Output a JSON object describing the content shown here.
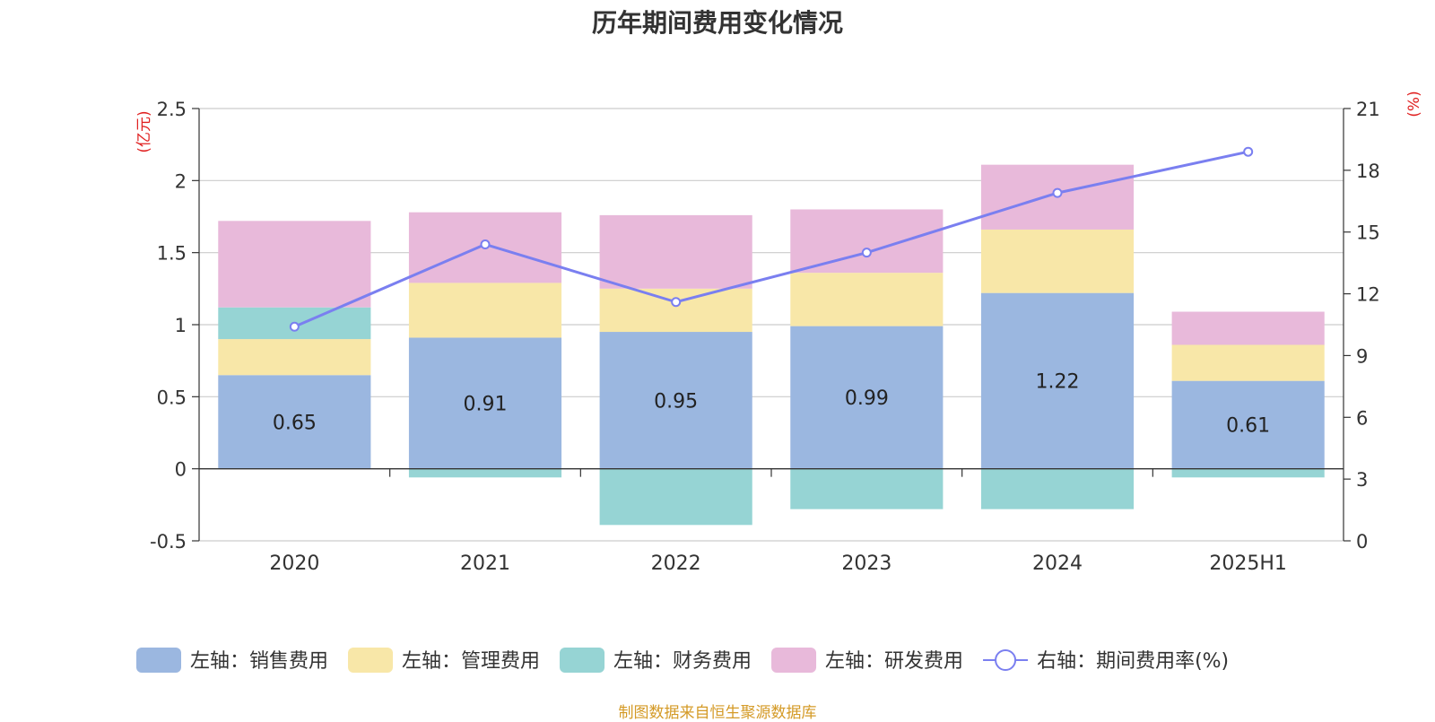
{
  "title": "历年期间费用变化情况",
  "footer": "制图数据来自恒生聚源数据库",
  "chart_data": {
    "type": "bar",
    "stacked": true,
    "title": "历年期间费用变化情况",
    "categories": [
      "2020",
      "2021",
      "2022",
      "2023",
      "2024",
      "2025H1"
    ],
    "left_axis": {
      "unit": "(亿元)",
      "ylim": [
        -0.5,
        2.5
      ],
      "ticks": [
        "2.5",
        "2",
        "1.5",
        "1",
        "0.5",
        "0",
        "-0.5"
      ]
    },
    "right_axis": {
      "unit": "(%)",
      "ylim": [
        0,
        21
      ],
      "ticks": [
        "21",
        "18",
        "15",
        "12",
        "9",
        "6",
        "3",
        "0"
      ]
    },
    "series": [
      {
        "name": "左轴：销售费用",
        "axis": "left",
        "kind": "bar",
        "color": "#9bb7e0",
        "values": [
          0.65,
          0.91,
          0.95,
          0.99,
          1.22,
          0.61
        ],
        "labels": [
          "0.65",
          "0.91",
          "0.95",
          "0.99",
          "1.22",
          "0.61"
        ]
      },
      {
        "name": "左轴：管理费用",
        "axis": "left",
        "kind": "bar",
        "color": "#f8e7a8",
        "values": [
          0.25,
          0.38,
          0.3,
          0.37,
          0.44,
          0.25
        ]
      },
      {
        "name": "左轴：财务费用",
        "axis": "left",
        "kind": "bar",
        "color": "#96d4d4",
        "values": [
          0.22,
          -0.06,
          -0.39,
          -0.28,
          -0.28,
          -0.06
        ]
      },
      {
        "name": "左轴：研发费用",
        "axis": "left",
        "kind": "bar",
        "color": "#e8b9da",
        "values": [
          0.6,
          0.49,
          0.51,
          0.44,
          0.45,
          0.23
        ]
      },
      {
        "name": "右轴：期间费用率(%)",
        "axis": "right",
        "kind": "line",
        "color": "#7a7ff0",
        "values": [
          10.4,
          14.4,
          11.6,
          14.0,
          16.9,
          18.9
        ]
      }
    ],
    "grid": true,
    "legend_position": "bottom"
  }
}
